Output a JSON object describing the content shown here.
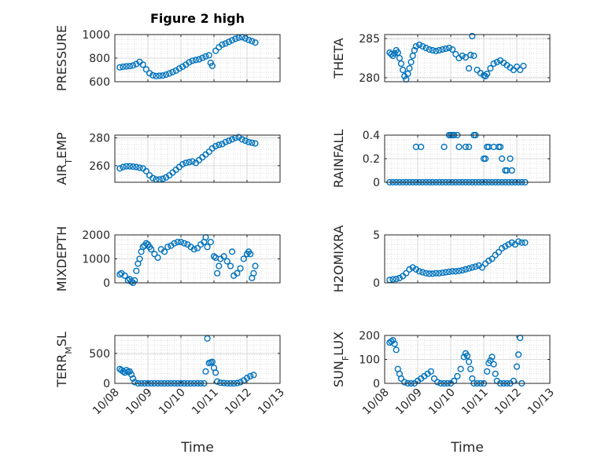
{
  "figure": {
    "title": "Figure 2 high",
    "xlabel": "Time",
    "marker_color": "#0072BD"
  },
  "chart_data": [
    {
      "type": "scatter",
      "ylabel": "PRESSURE",
      "xlim": [
        0,
        5
      ],
      "ylim": [
        600,
        1000
      ],
      "yticks": [
        {
          "v": 600,
          "label": "600"
        },
        {
          "v": 800,
          "label": "800"
        },
        {
          "v": 1000,
          "label": "1000"
        }
      ],
      "xticks": [
        {
          "v": 0,
          "label": "10/08"
        },
        {
          "v": 1,
          "label": "10/09"
        },
        {
          "v": 2,
          "label": "10/10"
        },
        {
          "v": 3,
          "label": "10/11"
        },
        {
          "v": 4,
          "label": "10/12"
        },
        {
          "v": 5,
          "label": "10/13"
        }
      ],
      "show_xticklabels": false,
      "x": [
        0.15,
        0.25,
        0.35,
        0.45,
        0.55,
        0.65,
        0.75,
        0.85,
        0.95,
        1.05,
        1.15,
        1.25,
        1.35,
        1.45,
        1.55,
        1.65,
        1.75,
        1.85,
        1.95,
        2.05,
        2.15,
        2.25,
        2.35,
        2.45,
        2.55,
        2.65,
        2.75,
        2.85,
        2.9,
        2.95,
        3.05,
        3.15,
        3.25,
        3.35,
        3.45,
        3.55,
        3.65,
        3.75,
        3.85,
        3.95,
        4.05,
        4.15,
        4.25
      ],
      "y": [
        722,
        727,
        730,
        732,
        738,
        750,
        768,
        745,
        705,
        672,
        655,
        648,
        650,
        652,
        660,
        670,
        682,
        695,
        712,
        728,
        745,
        765,
        778,
        785,
        790,
        802,
        815,
        825,
        760,
        735,
        862,
        892,
        915,
        925,
        938,
        952,
        965,
        974,
        978,
        968,
        955,
        945,
        932
      ]
    },
    {
      "type": "scatter",
      "ylabel": "THETA",
      "xlim": [
        0,
        5
      ],
      "ylim": [
        279.5,
        285.5
      ],
      "yticks": [
        {
          "v": 280,
          "label": "280"
        },
        {
          "v": 285,
          "label": "285"
        }
      ],
      "xticks": [
        {
          "v": 0,
          "label": "10/08"
        },
        {
          "v": 1,
          "label": "10/09"
        },
        {
          "v": 2,
          "label": "10/10"
        },
        {
          "v": 3,
          "label": "10/11"
        },
        {
          "v": 4,
          "label": "10/12"
        },
        {
          "v": 5,
          "label": "10/13"
        }
      ],
      "show_xticklabels": false,
      "x": [
        0.15,
        0.2,
        0.25,
        0.3,
        0.35,
        0.4,
        0.45,
        0.5,
        0.55,
        0.6,
        0.65,
        0.7,
        0.75,
        0.8,
        0.85,
        0.9,
        0.95,
        1.05,
        1.15,
        1.25,
        1.35,
        1.45,
        1.55,
        1.65,
        1.75,
        1.85,
        1.95,
        2.05,
        2.15,
        2.25,
        2.35,
        2.45,
        2.55,
        2.6,
        2.65,
        2.7,
        2.8,
        2.9,
        3.0,
        3.05,
        3.1,
        3.2,
        3.3,
        3.4,
        3.5,
        3.6,
        3.7,
        3.8,
        3.9,
        4.0,
        4.1,
        4.2
      ],
      "y": [
        283.2,
        283.0,
        282.8,
        283.1,
        283.5,
        283.2,
        282.5,
        281.8,
        281.0,
        280.2,
        279.8,
        280.5,
        281.2,
        282.0,
        282.8,
        283.5,
        284.0,
        284.2,
        284.0,
        283.8,
        283.6,
        283.5,
        283.4,
        283.5,
        283.6,
        283.7,
        283.8,
        283.6,
        283.0,
        282.5,
        282.8,
        282.6,
        281.2,
        282.9,
        285.3,
        282.8,
        281.0,
        280.6,
        280.3,
        280.2,
        280.5,
        281.2,
        281.8,
        282.0,
        282.2,
        281.9,
        281.6,
        281.3,
        281.0,
        281.4,
        281.0,
        281.5
      ]
    },
    {
      "type": "scatter",
      "ylabel": "AIR_TEMP",
      "xlim": [
        0,
        5
      ],
      "ylim": [
        248,
        282
      ],
      "yticks": [
        {
          "v": 260,
          "label": "260"
        },
        {
          "v": 280,
          "label": "280"
        }
      ],
      "xticks": [
        {
          "v": 0,
          "label": "10/08"
        },
        {
          "v": 1,
          "label": "10/09"
        },
        {
          "v": 2,
          "label": "10/10"
        },
        {
          "v": 3,
          "label": "10/11"
        },
        {
          "v": 4,
          "label": "10/12"
        },
        {
          "v": 5,
          "label": "10/13"
        }
      ],
      "show_xticklabels": false,
      "x": [
        0.15,
        0.25,
        0.35,
        0.45,
        0.55,
        0.65,
        0.75,
        0.85,
        0.95,
        1.05,
        1.15,
        1.25,
        1.35,
        1.45,
        1.55,
        1.65,
        1.75,
        1.85,
        1.95,
        2.05,
        2.15,
        2.25,
        2.35,
        2.45,
        2.55,
        2.65,
        2.75,
        2.85,
        2.95,
        3.05,
        3.15,
        3.25,
        3.35,
        3.45,
        3.55,
        3.65,
        3.75,
        3.85,
        3.95,
        4.05,
        4.15,
        4.25
      ],
      "y": [
        258,
        259,
        259.5,
        259.5,
        259.3,
        259,
        258.5,
        258,
        256,
        253,
        251,
        250,
        250,
        250.5,
        251.5,
        253,
        255,
        257,
        259,
        261,
        262,
        262.5,
        263,
        262,
        264,
        266,
        268,
        270,
        272.5,
        274,
        275,
        275.5,
        277,
        278,
        279,
        280,
        280.5,
        279,
        278,
        277,
        276.5,
        276
      ]
    },
    {
      "type": "scatter",
      "ylabel": "RAINFALL",
      "xlim": [
        0,
        5
      ],
      "ylim": [
        0,
        0.4
      ],
      "yticks": [
        {
          "v": 0,
          "label": "0"
        },
        {
          "v": 0.2,
          "label": "0.2"
        },
        {
          "v": 0.4,
          "label": "0.4"
        }
      ],
      "xticks": [
        {
          "v": 0,
          "label": "10/08"
        },
        {
          "v": 1,
          "label": "10/09"
        },
        {
          "v": 2,
          "label": "10/10"
        },
        {
          "v": 3,
          "label": "10/11"
        },
        {
          "v": 4,
          "label": "10/12"
        },
        {
          "v": 5,
          "label": "10/13"
        }
      ],
      "show_xticklabels": false,
      "x": [
        0.15,
        0.25,
        0.35,
        0.45,
        0.55,
        0.65,
        0.75,
        0.85,
        0.95,
        1.05,
        1.15,
        1.25,
        1.35,
        1.45,
        1.55,
        1.65,
        1.75,
        1.85,
        1.95,
        2.05,
        2.15,
        2.25,
        2.35,
        2.45,
        2.55,
        2.65,
        2.75,
        2.85,
        2.95,
        3.05,
        3.15,
        3.25,
        3.35,
        3.45,
        3.55,
        3.65,
        3.75,
        3.85,
        3.95,
        4.05,
        4.15,
        4.25,
        0.95,
        1.1,
        1.8,
        1.95,
        2.0,
        2.05,
        2.1,
        2.2,
        2.25,
        2.45,
        2.55,
        2.7,
        2.75,
        3.0,
        3.05,
        3.1,
        3.15,
        3.3,
        3.45,
        3.5,
        3.55,
        3.65,
        3.7,
        3.8,
        3.85
      ],
      "y": [
        0,
        0,
        0,
        0,
        0,
        0,
        0,
        0,
        0,
        0,
        0,
        0,
        0,
        0,
        0,
        0,
        0,
        0,
        0,
        0,
        0,
        0,
        0,
        0,
        0,
        0,
        0,
        0,
        0,
        0,
        0,
        0,
        0,
        0,
        0,
        0,
        0,
        0,
        0,
        0,
        0,
        0,
        0.3,
        0.3,
        0.3,
        0.4,
        0.4,
        0.4,
        0.4,
        0.4,
        0.3,
        0.3,
        0.3,
        0.4,
        0.4,
        0.2,
        0.2,
        0.3,
        0.3,
        0.3,
        0.3,
        0.3,
        0.2,
        0.1,
        0.1,
        0.2,
        0.1
      ]
    },
    {
      "type": "scatter",
      "ylabel": "MIXDEPTH",
      "xlim": [
        0,
        5
      ],
      "ylim": [
        0,
        2000
      ],
      "yticks": [
        {
          "v": 0,
          "label": "0"
        },
        {
          "v": 1000,
          "label": "1000"
        },
        {
          "v": 2000,
          "label": "2000"
        }
      ],
      "xticks": [
        {
          "v": 0,
          "label": "10/08"
        },
        {
          "v": 1,
          "label": "10/09"
        },
        {
          "v": 2,
          "label": "10/10"
        },
        {
          "v": 3,
          "label": "10/11"
        },
        {
          "v": 4,
          "label": "10/12"
        },
        {
          "v": 5,
          "label": "10/13"
        }
      ],
      "show_xticklabels": false,
      "x": [
        0.15,
        0.2,
        0.3,
        0.4,
        0.45,
        0.5,
        0.55,
        0.6,
        0.65,
        0.7,
        0.75,
        0.8,
        0.85,
        0.9,
        0.95,
        1.0,
        1.05,
        1.1,
        1.2,
        1.3,
        1.4,
        1.5,
        1.6,
        1.7,
        1.8,
        1.9,
        2.0,
        2.1,
        2.2,
        2.3,
        2.4,
        2.5,
        2.6,
        2.7,
        2.75,
        2.8,
        2.9,
        3.0,
        3.05,
        3.1,
        3.15,
        3.2,
        3.3,
        3.4,
        3.5,
        3.55,
        3.6,
        3.7,
        3.8,
        3.9,
        4.0,
        4.05,
        4.1,
        4.15,
        4.2,
        4.25
      ],
      "y": [
        350,
        400,
        300,
        100,
        150,
        50,
        0,
        100,
        500,
        800,
        1000,
        1300,
        1500,
        1550,
        1650,
        1600,
        1500,
        1400,
        1200,
        1050,
        1400,
        1300,
        1500,
        1550,
        1650,
        1700,
        1700,
        1650,
        1600,
        1500,
        1400,
        1450,
        1600,
        1700,
        1900,
        1500,
        1700,
        1100,
        1050,
        400,
        700,
        1000,
        1100,
        900,
        700,
        1300,
        300,
        400,
        600,
        1000,
        1200,
        1300,
        1200,
        200,
        400,
        700
      ]
    },
    {
      "type": "scatter",
      "ylabel": "H2OMIXRA",
      "xlim": [
        0,
        5
      ],
      "ylim": [
        0,
        5
      ],
      "yticks": [
        {
          "v": 0,
          "label": "0"
        },
        {
          "v": 5,
          "label": "5"
        }
      ],
      "xticks": [
        {
          "v": 0,
          "label": "10/08"
        },
        {
          "v": 1,
          "label": "10/09"
        },
        {
          "v": 2,
          "label": "10/10"
        },
        {
          "v": 3,
          "label": "10/11"
        },
        {
          "v": 4,
          "label": "10/12"
        },
        {
          "v": 5,
          "label": "10/13"
        }
      ],
      "show_xticklabels": false,
      "x": [
        0.15,
        0.25,
        0.35,
        0.45,
        0.55,
        0.65,
        0.75,
        0.85,
        0.95,
        1.05,
        1.15,
        1.25,
        1.35,
        1.45,
        1.55,
        1.65,
        1.75,
        1.85,
        1.95,
        2.05,
        2.15,
        2.25,
        2.35,
        2.45,
        2.55,
        2.65,
        2.75,
        2.85,
        2.95,
        3.05,
        3.15,
        3.25,
        3.35,
        3.45,
        3.55,
        3.65,
        3.75,
        3.85,
        3.95,
        4.05,
        4.15,
        4.25
      ],
      "y": [
        0.3,
        0.35,
        0.4,
        0.5,
        0.7,
        1.0,
        1.4,
        1.6,
        1.4,
        1.2,
        1.1,
        1.0,
        0.95,
        0.95,
        1.0,
        1.0,
        1.05,
        1.1,
        1.15,
        1.2,
        1.2,
        1.25,
        1.3,
        1.4,
        1.5,
        1.6,
        1.7,
        1.8,
        1.6,
        2.0,
        2.3,
        2.5,
        2.9,
        3.2,
        3.6,
        3.8,
        4.0,
        4.2,
        4.0,
        4.3,
        4.2,
        4.2
      ]
    },
    {
      "type": "scatter",
      "ylabel": "TERR_MSL",
      "xlim": [
        0,
        5
      ],
      "ylim": [
        0,
        800
      ],
      "yticks": [
        {
          "v": 0,
          "label": "0"
        },
        {
          "v": 500,
          "label": "500"
        }
      ],
      "xticks": [
        {
          "v": 0,
          "label": "10/08"
        },
        {
          "v": 1,
          "label": "10/09"
        },
        {
          "v": 2,
          "label": "10/10"
        },
        {
          "v": 3,
          "label": "10/11"
        },
        {
          "v": 4,
          "label": "10/12"
        },
        {
          "v": 5,
          "label": "10/13"
        }
      ],
      "show_xticklabels": true,
      "x": [
        0.15,
        0.2,
        0.25,
        0.3,
        0.35,
        0.4,
        0.45,
        0.5,
        0.55,
        0.6,
        0.7,
        0.8,
        0.9,
        1.0,
        1.1,
        1.2,
        1.3,
        1.4,
        1.5,
        1.6,
        1.7,
        1.8,
        1.9,
        2.0,
        2.1,
        2.2,
        2.3,
        2.4,
        2.5,
        2.6,
        2.7,
        2.75,
        2.8,
        2.85,
        2.9,
        2.95,
        3.0,
        3.05,
        3.1,
        3.2,
        3.3,
        3.4,
        3.5,
        3.6,
        3.7,
        3.8,
        3.9,
        4.0,
        4.1,
        4.2
      ],
      "y": [
        240,
        220,
        200,
        180,
        220,
        190,
        200,
        150,
        80,
        20,
        0,
        0,
        0,
        0,
        0,
        0,
        0,
        0,
        0,
        0,
        0,
        0,
        0,
        0,
        0,
        0,
        0,
        0,
        0,
        0,
        0,
        200,
        750,
        340,
        350,
        360,
        260,
        180,
        30,
        10,
        5,
        0,
        0,
        0,
        5,
        20,
        50,
        90,
        120,
        140
      ]
    },
    {
      "type": "scatter",
      "ylabel": "SUN_FLUX",
      "xlim": [
        0,
        5
      ],
      "ylim": [
        0,
        200
      ],
      "yticks": [
        {
          "v": 0,
          "label": "0"
        },
        {
          "v": 100,
          "label": "100"
        },
        {
          "v": 200,
          "label": "200"
        }
      ],
      "xticks": [
        {
          "v": 0,
          "label": "10/08"
        },
        {
          "v": 1,
          "label": "10/09"
        },
        {
          "v": 2,
          "label": "10/10"
        },
        {
          "v": 3,
          "label": "10/11"
        },
        {
          "v": 4,
          "label": "10/12"
        },
        {
          "v": 5,
          "label": "10/13"
        }
      ],
      "show_xticklabels": true,
      "x": [
        0.15,
        0.2,
        0.25,
        0.3,
        0.35,
        0.4,
        0.45,
        0.5,
        0.6,
        0.7,
        0.8,
        0.9,
        1.0,
        1.1,
        1.2,
        1.3,
        1.4,
        1.5,
        1.6,
        1.7,
        1.8,
        1.9,
        2.0,
        2.1,
        2.2,
        2.3,
        2.4,
        2.45,
        2.5,
        2.55,
        2.6,
        2.65,
        2.7,
        2.8,
        2.9,
        3.0,
        3.1,
        3.15,
        3.2,
        3.25,
        3.3,
        3.35,
        3.4,
        3.5,
        3.6,
        3.7,
        3.8,
        3.9,
        4.0,
        4.05,
        4.1,
        4.15
      ],
      "y": [
        170,
        175,
        180,
        165,
        140,
        60,
        40,
        20,
        5,
        0,
        0,
        0,
        10,
        20,
        30,
        40,
        50,
        20,
        5,
        0,
        0,
        0,
        0,
        10,
        30,
        60,
        110,
        125,
        115,
        90,
        60,
        20,
        0,
        0,
        0,
        0,
        50,
        85,
        95,
        110,
        80,
        40,
        10,
        0,
        0,
        0,
        0,
        10,
        70,
        120,
        190,
        0
      ]
    }
  ]
}
